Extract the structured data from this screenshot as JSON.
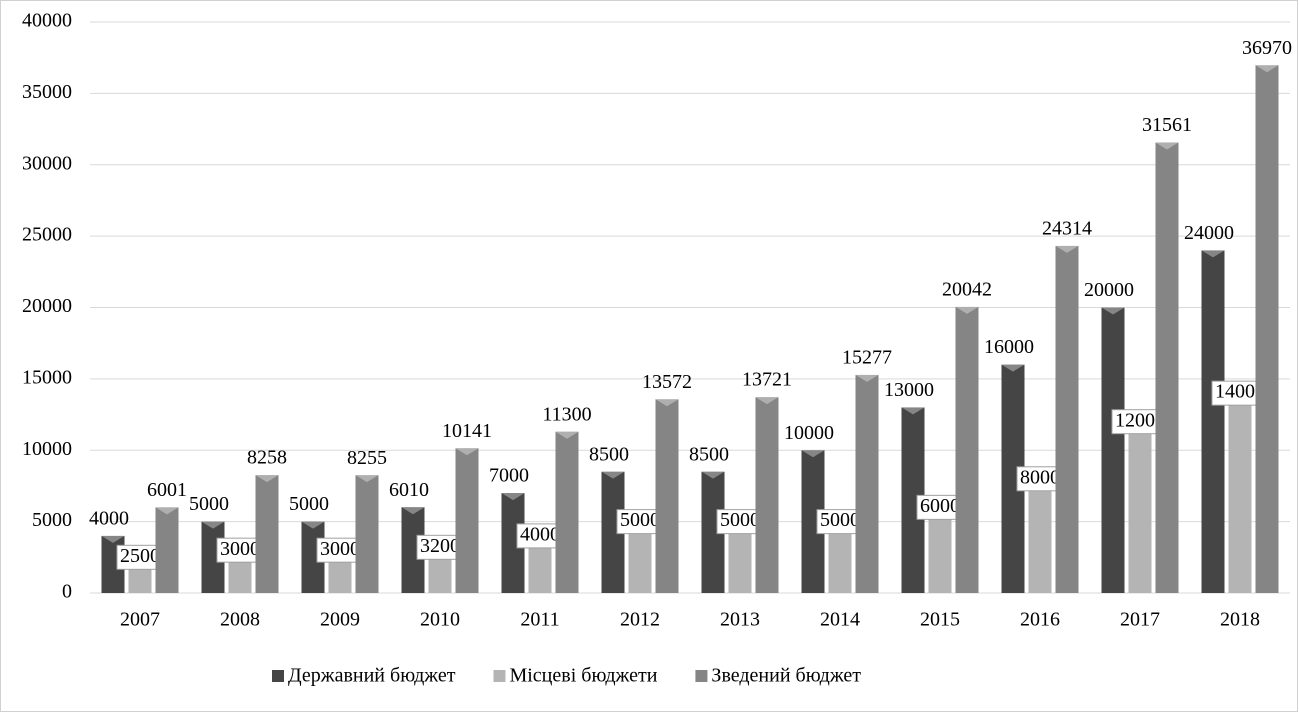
{
  "chart_data": {
    "type": "bar",
    "categories": [
      "2007",
      "2008",
      "2009",
      "2010",
      "2011",
      "2012",
      "2013",
      "2014",
      "2015",
      "2016",
      "2017",
      "2018"
    ],
    "series": [
      {
        "name": "Державний бюджет",
        "color": "#454545",
        "values": [
          4000,
          5000,
          5000,
          6010,
          7000,
          8500,
          8500,
          10000,
          13000,
          16000,
          20000,
          24000
        ]
      },
      {
        "name": "Місцеві бюджети",
        "color": "#b4b4b4",
        "values": [
          2500,
          3000,
          3000,
          3200,
          4000,
          5000,
          5000,
          5000,
          6000,
          8000,
          12000,
          14000
        ]
      },
      {
        "name": "Зведений бюджет",
        "color": "#858585",
        "values": [
          6001,
          8258,
          8255,
          10141,
          11300,
          13572,
          13721,
          15277,
          20042,
          24314,
          31561,
          36970
        ]
      }
    ],
    "ylim": [
      0,
      40000
    ],
    "yticks": [
      0,
      5000,
      10000,
      15000,
      20000,
      25000,
      30000,
      35000,
      40000
    ],
    "grid": true,
    "legend": "bottom"
  }
}
